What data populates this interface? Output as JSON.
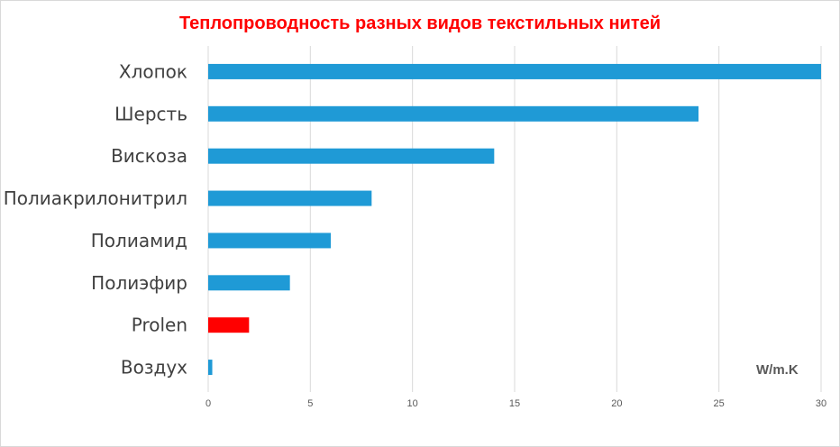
{
  "chart_data": {
    "type": "bar",
    "orientation": "horizontal",
    "title": "Теплопроводность разных видов текстильных нитей",
    "unit_label": "W/m.K",
    "categories": [
      "Хлопок",
      "Шерсть",
      "Вискоза",
      "Полиакрилонитрил",
      "Полиамид",
      "Полиэфир",
      "Prolen",
      "Воздух"
    ],
    "values": [
      30,
      24,
      14,
      8,
      6,
      4,
      2,
      0.2
    ],
    "bar_colors": [
      "#1f9ad6",
      "#1f9ad6",
      "#1f9ad6",
      "#1f9ad6",
      "#1f9ad6",
      "#1f9ad6",
      "#ff0000",
      "#1f9ad6"
    ],
    "xlim": [
      0,
      30
    ],
    "xticks": [
      0,
      5,
      10,
      15,
      20,
      25,
      30
    ],
    "grid": "vertical",
    "legend": "none",
    "colors": {
      "title": "#ff0000",
      "bar_default": "#1f9ad6",
      "bar_highlight": "#ff0000",
      "grid": "#d9d9d9",
      "text": "#404040"
    }
  }
}
